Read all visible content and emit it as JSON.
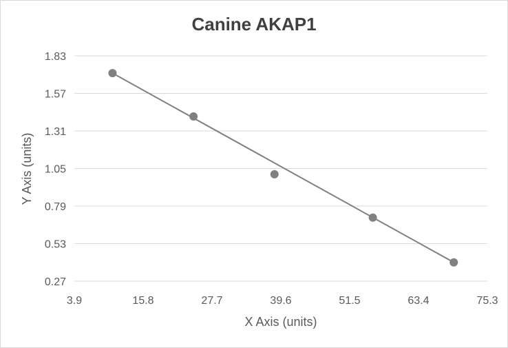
{
  "chart_data": {
    "type": "scatter",
    "title": "Canine AKAP1",
    "xlabel": "X Axis (units)",
    "ylabel": "Y Axis (units)",
    "x_ticks": [
      "3.9",
      "15.8",
      "27.7",
      "39.6",
      "51.5",
      "63.4",
      "75.3"
    ],
    "y_ticks": [
      "1.83",
      "1.57",
      "1.31",
      "1.05",
      "0.79",
      "0.53",
      "0.27"
    ],
    "xlim": [
      3.9,
      75.3
    ],
    "ylim": [
      0.27,
      1.83
    ],
    "grid": "horizontal",
    "legend": "none",
    "series": [
      {
        "points": [
          {
            "x": 10.5,
            "y": 1.71
          },
          {
            "x": 24.5,
            "y": 1.41
          },
          {
            "x": 38.5,
            "y": 1.01
          },
          {
            "x": 55.5,
            "y": 0.71
          },
          {
            "x": 69.5,
            "y": 0.4
          }
        ]
      }
    ],
    "trendline": {
      "type": "linear",
      "from": {
        "x": 10.5,
        "y": 1.71
      },
      "to": {
        "x": 69.5,
        "y": 0.4
      }
    },
    "colors": {
      "marker": "#808080",
      "trendline": "#808080",
      "grid": "#d9d9d9",
      "text": "#595959",
      "title": "#404040"
    }
  }
}
